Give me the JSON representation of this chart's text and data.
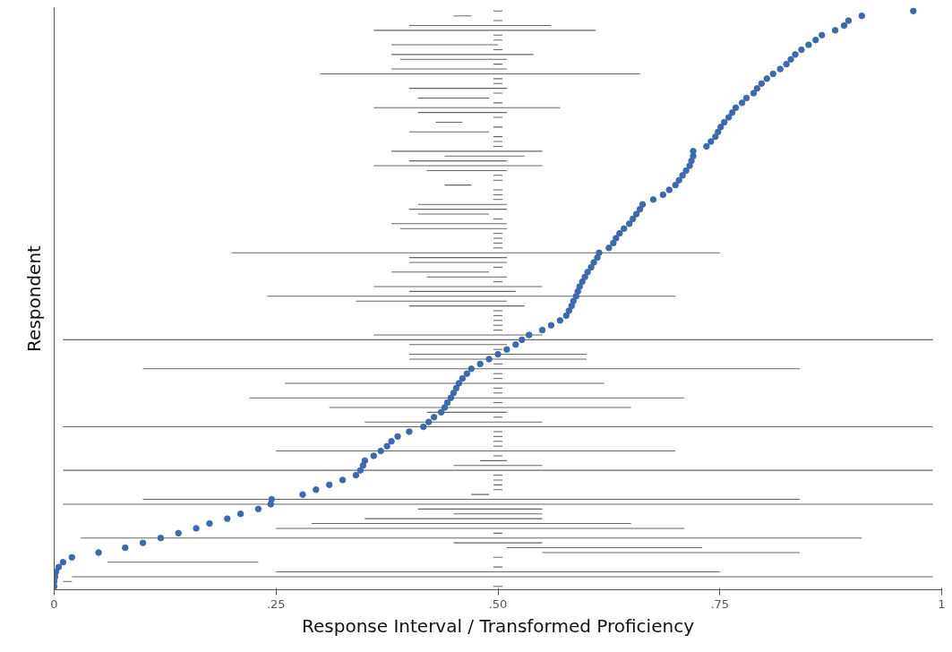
{
  "chart_data": {
    "type": "scatter",
    "orientation": "horizontal",
    "xlabel": "Response Interval / Transformed Proficiency",
    "ylabel": "Respondent",
    "xlim": [
      0,
      1
    ],
    "xticks": [
      0,
      {
        "value": 0.25,
        "label": ".25"
      },
      {
        "value": 0.5,
        "label": ".50"
      },
      {
        "value": 0.75,
        "label": ".75"
      },
      1
    ],
    "tick_labels": "x",
    "categories": [
      null,
      null,
      null,
      null,
      null,
      null,
      null,
      null,
      null,
      null,
      null,
      null,
      null,
      null,
      null,
      null,
      null,
      null,
      null,
      null,
      null,
      null,
      null,
      null,
      null,
      null,
      null,
      null,
      null,
      null,
      null,
      null,
      null,
      null,
      null,
      null,
      null,
      null,
      null,
      null,
      null,
      null,
      null,
      null,
      null,
      null,
      null,
      null,
      null,
      null,
      null,
      null,
      null,
      null,
      null,
      null,
      null,
      null,
      null,
      null,
      null,
      null,
      null,
      null,
      null,
      null,
      null,
      null,
      null,
      null,
      null,
      null,
      null,
      null,
      null,
      null,
      null,
      null,
      null,
      null,
      null,
      null,
      null,
      null,
      null,
      null,
      null,
      null,
      null,
      null,
      null,
      null,
      null,
      null,
      null,
      null,
      null,
      null,
      null,
      null,
      null,
      null,
      null,
      null,
      null,
      null,
      null,
      null,
      null,
      null,
      null,
      null,
      null,
      null,
      null,
      null,
      null,
      null,
      null,
      null
    ],
    "series": [
      {
        "type": "bar",
        "color": "#666666",
        "base": [
          0.495,
          0.45,
          0.495,
          0.4,
          0.36,
          0.495,
          0.495,
          0.38,
          0.495,
          0.38,
          0.39,
          0.495,
          0.38,
          0.3,
          0.495,
          0.495,
          0.4,
          0.495,
          0.41,
          0.495,
          0.36,
          0.41,
          0.495,
          0.43,
          0.495,
          0.4,
          0.495,
          0.495,
          0.495,
          0.38,
          0.44,
          0.4,
          0.36,
          0.42,
          0.495,
          0.495,
          0.44,
          0.495,
          0.495,
          0.495,
          0.41,
          0.4,
          0.41,
          0.495,
          0.38,
          0.39,
          0.495,
          0.495,
          0.495,
          0.495,
          0.2,
          0.4,
          0.4,
          0.495,
          0.38,
          0.42,
          0.495,
          0.36,
          0.4,
          0.24,
          0.34,
          0.4,
          0.495,
          0.495,
          0.495,
          0.495,
          0.495,
          0.36,
          0.01,
          0.4,
          0.495,
          0.4,
          0.4,
          0.495,
          0.1,
          0.495,
          0.495,
          0.26,
          0.495,
          0.495,
          0.22,
          0.495,
          0.31,
          0.42,
          0.495,
          0.35,
          0.01,
          0.495,
          0.495,
          0.495,
          0.495,
          0.25,
          0.495,
          0.48,
          0.45,
          0.01,
          0.495,
          0.495,
          0.495,
          0.495,
          0.47,
          0.1,
          0.01,
          0.41,
          0.45,
          0.35,
          0.29,
          0.25,
          0.495,
          0.03,
          0.45,
          0.51,
          0.55,
          0.495,
          0.06,
          0.495,
          0.25,
          0.02,
          0.01,
          0.495
        ],
        "values": [
          0.01,
          0.02,
          0.01,
          0.16,
          0.25,
          0.01,
          0.01,
          0.12,
          0.01,
          0.16,
          0.12,
          0.01,
          0.13,
          0.36,
          0.01,
          0.01,
          0.11,
          0.01,
          0.08,
          0.01,
          0.21,
          0.1,
          0.01,
          0.03,
          0.01,
          0.09,
          0.01,
          0.01,
          0.01,
          0.17,
          0.09,
          0.11,
          0.19,
          0.09,
          0.01,
          0.01,
          0.03,
          0.01,
          0.01,
          0.01,
          0.1,
          0.11,
          0.08,
          0.01,
          0.13,
          0.12,
          0.01,
          0.01,
          0.01,
          0.01,
          0.55,
          0.11,
          0.11,
          0.01,
          0.11,
          0.09,
          0.01,
          0.19,
          0.12,
          0.46,
          0.17,
          0.13,
          0.01,
          0.01,
          0.01,
          0.01,
          0.01,
          0.19,
          0.98,
          0.11,
          0.01,
          0.2,
          0.2,
          0.01,
          0.74,
          0.01,
          0.01,
          0.36,
          0.01,
          0.01,
          0.49,
          0.01,
          0.34,
          0.09,
          0.01,
          0.2,
          0.98,
          0.01,
          0.01,
          0.01,
          0.01,
          0.45,
          0.01,
          0.03,
          0.1,
          0.98,
          0.01,
          0.01,
          0.01,
          0.01,
          0.02,
          0.74,
          0.98,
          0.14,
          0.1,
          0.2,
          0.36,
          0.46,
          0.01,
          0.88,
          0.1,
          0.22,
          0.29,
          0.01,
          0.17,
          0.01,
          0.5,
          0.97,
          0.01,
          0.01
        ]
      },
      {
        "marker": "circle",
        "color": "#3d6aad",
        "values": [
          0.968,
          0.91,
          0.895,
          0.89,
          0.88,
          0.865,
          0.858,
          0.85,
          0.842,
          0.835,
          0.83,
          0.825,
          0.818,
          0.81,
          0.803,
          0.797,
          0.792,
          0.788,
          0.78,
          0.775,
          0.768,
          0.764,
          0.76,
          0.755,
          0.751,
          0.748,
          0.745,
          0.74,
          0.735,
          0.72,
          0.72,
          0.718,
          0.716,
          0.712,
          0.708,
          0.704,
          0.7,
          0.693,
          0.686,
          0.675,
          0.663,
          0.66,
          0.656,
          0.652,
          0.648,
          0.642,
          0.637,
          0.633,
          0.63,
          0.625,
          0.614,
          0.612,
          0.608,
          0.605,
          0.601,
          0.598,
          0.595,
          0.592,
          0.59,
          0.588,
          0.585,
          0.583,
          0.58,
          0.577,
          0.57,
          0.56,
          0.55,
          0.535,
          0.527,
          0.52,
          0.51,
          0.5,
          0.49,
          0.48,
          0.47,
          0.465,
          0.46,
          0.456,
          0.453,
          0.45,
          0.447,
          0.443,
          0.44,
          0.436,
          0.428,
          0.422,
          0.416,
          0.4,
          0.387,
          0.38,
          0.375,
          0.368,
          0.36,
          0.35,
          0.348,
          0.345,
          0.34,
          0.325,
          0.31,
          0.295,
          0.28,
          0.245,
          0.244,
          0.23,
          0.21,
          0.195,
          0.175,
          0.16,
          0.14,
          0.12,
          0.1,
          0.08,
          0.05,
          0.02,
          0.01,
          0.005,
          0.002,
          0.001,
          0,
          0
        ]
      }
    ]
  }
}
